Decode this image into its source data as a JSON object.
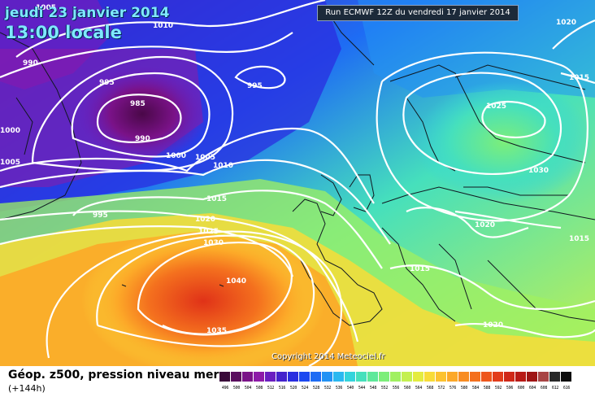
{
  "header": {
    "date": "jeudi 23 janvier 2014",
    "time_local": "13:00 locale",
    "run_info": "Run ECMWF 12Z du vendredi 17 janvier 2014"
  },
  "copyright": "Copyright 2014 Meteociel.fr",
  "footer": {
    "title": "Géop. z500, pression niveau mer",
    "step": "(+144h)"
  },
  "legend": {
    "values": [
      "496",
      "500",
      "504",
      "508",
      "512",
      "516",
      "520",
      "524",
      "528",
      "532",
      "536",
      "540",
      "544",
      "548",
      "552",
      "556",
      "560",
      "564",
      "568",
      "572",
      "576",
      "580",
      "584",
      "588",
      "592",
      "596",
      "600",
      "604",
      "608",
      "612",
      "616"
    ],
    "colors": [
      "#3a0a3a",
      "#5a0e5e",
      "#7a1288",
      "#8e1aa8",
      "#6a1ec0",
      "#4422cc",
      "#2a2ee0",
      "#1c48f0",
      "#1e6cf4",
      "#2292f4",
      "#2ab8f0",
      "#34d4dc",
      "#46e0bc",
      "#5ee89a",
      "#7cee7a",
      "#a0f060",
      "#c4f050",
      "#e4ec40",
      "#f8dc38",
      "#fcc230",
      "#fca828",
      "#f88c22",
      "#f4701e",
      "#ee561c",
      "#e23c1a",
      "#d02818",
      "#b81a16",
      "#9e1414",
      "#a84444",
      "#282828",
      "#0c0c0c"
    ]
  },
  "isobars": [
    "1005",
    "1010",
    "990",
    "995",
    "995",
    "985",
    "990",
    "1000",
    "1000",
    "1005",
    "1005",
    "1010",
    "1015",
    "995",
    "1020",
    "1025",
    "1030",
    "1040",
    "1035",
    "1020",
    "1015",
    "1025",
    "1030",
    "1020",
    "1015",
    "1015",
    "1020"
  ]
}
